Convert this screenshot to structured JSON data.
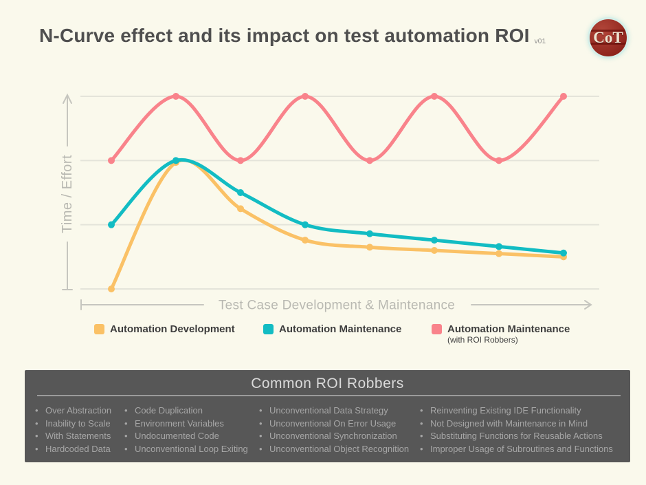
{
  "header": {
    "title": "N-Curve effect and its impact on test automation ROI",
    "version": "v01",
    "logo_text": "CoT"
  },
  "chart_data": {
    "type": "line",
    "x": [
      0,
      1,
      2,
      3,
      4,
      5,
      6,
      7
    ],
    "series": [
      {
        "name": "Automation Development",
        "color": "#fac166",
        "values": [
          0,
          1.97,
          1.25,
          0.76,
          0.65,
          0.6,
          0.55,
          0.5
        ]
      },
      {
        "name": "Automation Maintenance",
        "color": "#12bcc3",
        "values": [
          1.0,
          2.0,
          1.5,
          1.0,
          0.86,
          0.76,
          0.66,
          0.56
        ]
      },
      {
        "name": "Automation Maintenance (with ROI Robbers)",
        "color": "#f9838b",
        "values": [
          2,
          3,
          2,
          3,
          2,
          3,
          2,
          3
        ]
      }
    ],
    "xlabel": "Test Case Development & Maintenance",
    "ylabel": "Time / Effort",
    "ylim": [
      0,
      3.3
    ],
    "gridlines_at": [
      0,
      1,
      2,
      3
    ],
    "grid": true,
    "tick_labels": "none",
    "legend_position": "bottom"
  },
  "legend": {
    "items": [
      {
        "label": "Automation Development",
        "color": "#fac166"
      },
      {
        "label": "Automation Maintenance",
        "color": "#12bcc3"
      },
      {
        "label": "Automation Maintenance",
        "sublabel": "(with ROI Robbers)",
        "color": "#f9838b"
      }
    ]
  },
  "robbers": {
    "title": "Common ROI Robbers",
    "columns": [
      {
        "items": [
          "Over Abstraction",
          "Inability to Scale",
          "With Statements",
          "Hardcoded Data"
        ]
      },
      {
        "items": [
          "Code Duplication",
          "Environment Variables",
          "Undocumented Code",
          "Unconventional Loop Exiting"
        ]
      },
      {
        "items": [
          "Unconventional Data Strategy",
          "Unconventional On Error Usage",
          "Unconventional Synchronization",
          "Unconventional Object Recognition"
        ]
      },
      {
        "items": [
          "Reinventing Existing IDE Functionality",
          "Not Designed with Maintenance in Mind",
          "Substituting Functions for Reusable Actions",
          "Improper Usage of Subroutines and Functions"
        ]
      }
    ]
  },
  "colors": {
    "background": "#faf9ec",
    "title_text": "#4f4f4f",
    "axis": "#c6c6bf",
    "axis_label": "#b9b9b2",
    "gridline": "#e4e4da",
    "panel_bg": "#575757",
    "panel_title": "#dadada",
    "panel_divider": "#9b9b9b",
    "panel_text": "#a6a6a6",
    "legend_text": "#3e3e3e"
  }
}
